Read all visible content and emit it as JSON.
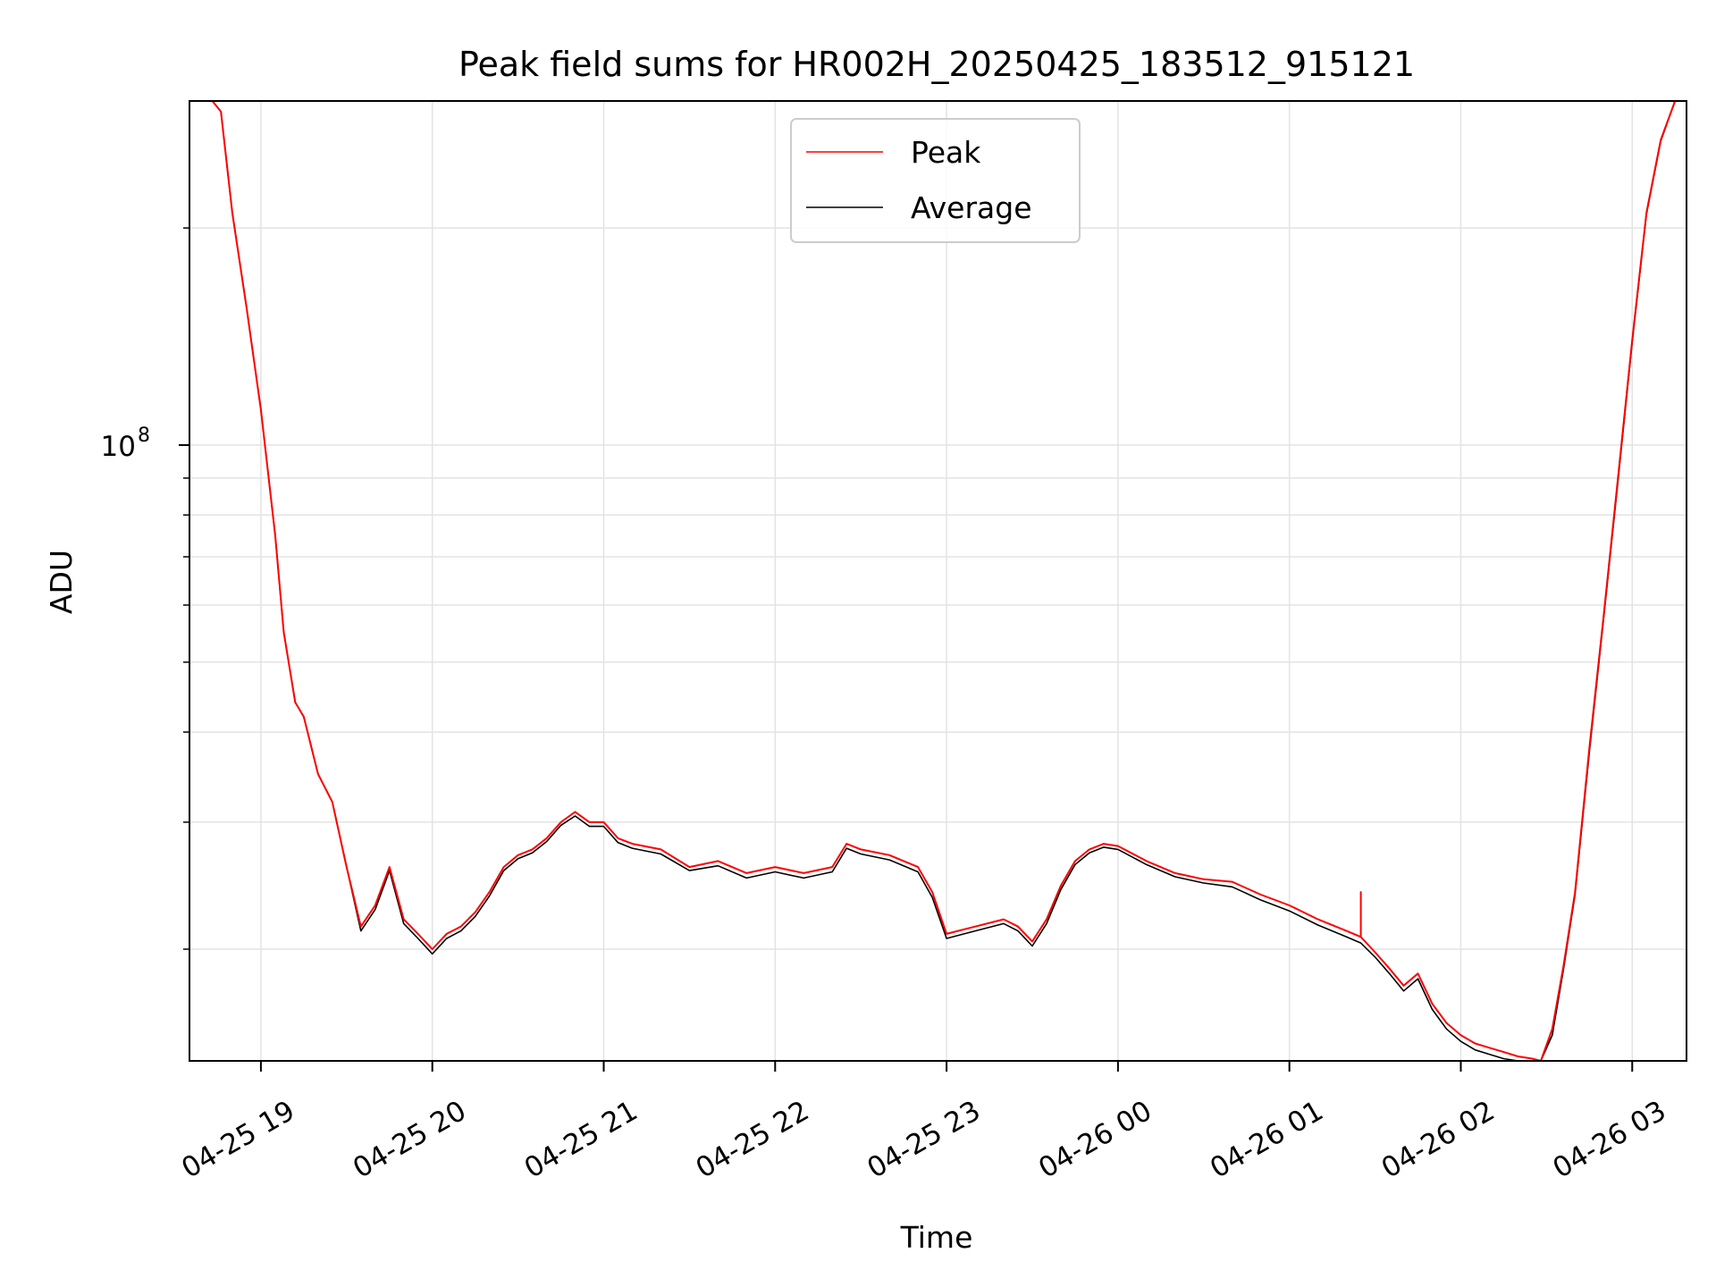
{
  "chart_data": {
    "type": "line",
    "title": "Peak field sums for HR002H_20250425_183512_915121",
    "xlabel": "Time",
    "ylabel": "ADU",
    "y_scale": "log",
    "xlim": [
      "2025-04-25T18:35",
      "2025-04-26T03:19"
    ],
    "ylim": [
      14000000,
      300000000
    ],
    "grid": true,
    "legend_position": "top-center",
    "x_ticks": [
      {
        "value": "2025-04-25T19:00",
        "label": "04-25 19"
      },
      {
        "value": "2025-04-25T20:00",
        "label": "04-25 20"
      },
      {
        "value": "2025-04-25T21:00",
        "label": "04-25 21"
      },
      {
        "value": "2025-04-25T22:00",
        "label": "04-25 22"
      },
      {
        "value": "2025-04-25T23:00",
        "label": "04-25 23"
      },
      {
        "value": "2025-04-26T00:00",
        "label": "04-26 00"
      },
      {
        "value": "2025-04-26T01:00",
        "label": "04-26 01"
      },
      {
        "value": "2025-04-26T02:00",
        "label": "04-26 02"
      },
      {
        "value": "2025-04-26T03:00",
        "label": "04-26 03"
      }
    ],
    "y_major_ticks": [
      {
        "value": 100000000,
        "label_base": "10",
        "label_exp": "8"
      }
    ],
    "y_minor_ticks": [
      20000000,
      30000000,
      40000000,
      50000000,
      60000000,
      70000000,
      80000000,
      90000000,
      200000000
    ],
    "series": [
      {
        "name": "Peak",
        "color": "#ff0000",
        "x": [
          "2025-04-25T18:35",
          "2025-04-25T18:40",
          "2025-04-25T18:43",
          "2025-04-25T18:46",
          "2025-04-25T18:50",
          "2025-04-25T18:55",
          "2025-04-25T19:00",
          "2025-04-25T19:05",
          "2025-04-25T19:08",
          "2025-04-25T19:12",
          "2025-04-25T19:15",
          "2025-04-25T19:20",
          "2025-04-25T19:25",
          "2025-04-25T19:30",
          "2025-04-25T19:35",
          "2025-04-25T19:40",
          "2025-04-25T19:45",
          "2025-04-25T19:50",
          "2025-04-25T19:55",
          "2025-04-25T20:00",
          "2025-04-25T20:05",
          "2025-04-25T20:10",
          "2025-04-25T20:15",
          "2025-04-25T20:20",
          "2025-04-25T20:25",
          "2025-04-25T20:30",
          "2025-04-25T20:35",
          "2025-04-25T20:40",
          "2025-04-25T20:45",
          "2025-04-25T20:50",
          "2025-04-25T20:55",
          "2025-04-25T21:00",
          "2025-04-25T21:05",
          "2025-04-25T21:10",
          "2025-04-25T21:20",
          "2025-04-25T21:30",
          "2025-04-25T21:40",
          "2025-04-25T21:50",
          "2025-04-25T22:00",
          "2025-04-25T22:10",
          "2025-04-25T22:20",
          "2025-04-25T22:25",
          "2025-04-25T22:30",
          "2025-04-25T22:40",
          "2025-04-25T22:50",
          "2025-04-25T22:55",
          "2025-04-25T23:00",
          "2025-04-25T23:10",
          "2025-04-25T23:20",
          "2025-04-25T23:25",
          "2025-04-25T23:30",
          "2025-04-25T23:35",
          "2025-04-25T23:40",
          "2025-04-25T23:45",
          "2025-04-25T23:50",
          "2025-04-25T23:55",
          "2025-04-26T00:00",
          "2025-04-26T00:10",
          "2025-04-26T00:20",
          "2025-04-26T00:30",
          "2025-04-26T00:40",
          "2025-04-26T00:50",
          "2025-04-26T01:00",
          "2025-04-26T01:10",
          "2025-04-26T01:20",
          "2025-04-26T01:25",
          "2025-04-26T01:25",
          "2025-04-26T01:25",
          "2025-04-26T01:30",
          "2025-04-26T01:35",
          "2025-04-26T01:40",
          "2025-04-26T01:45",
          "2025-04-26T01:50",
          "2025-04-26T01:55",
          "2025-04-26T02:00",
          "2025-04-26T02:05",
          "2025-04-26T02:10",
          "2025-04-26T02:15",
          "2025-04-26T02:20",
          "2025-04-26T02:25",
          "2025-04-26T02:28",
          "2025-04-26T02:32",
          "2025-04-26T02:36",
          "2025-04-26T02:40",
          "2025-04-26T02:45",
          "2025-04-26T02:50",
          "2025-04-26T02:55",
          "2025-04-26T03:00",
          "2025-04-26T03:05",
          "2025-04-26T03:10",
          "2025-04-26T03:15",
          "2025-04-26T03:19"
        ],
        "values": [
          300000000,
          300000000,
          300000000,
          290000000,
          210000000,
          155000000,
          112000000,
          75000000,
          55000000,
          44000000,
          42000000,
          35000000,
          32000000,
          26000000,
          21500000,
          23000000,
          26000000,
          22000000,
          21000000,
          20000000,
          21000000,
          21500000,
          22500000,
          24000000,
          26000000,
          27000000,
          27500000,
          28500000,
          30000000,
          31000000,
          30000000,
          30000000,
          28500000,
          28000000,
          27500000,
          26000000,
          26500000,
          25500000,
          26000000,
          25500000,
          26000000,
          28000000,
          27500000,
          27000000,
          26000000,
          24000000,
          21000000,
          21500000,
          22000000,
          21500000,
          20500000,
          22000000,
          24500000,
          26500000,
          27500000,
          28000000,
          27800000,
          26500000,
          25500000,
          25000000,
          24800000,
          23800000,
          23000000,
          22000000,
          21200000,
          20800000,
          24000000,
          20800000,
          19800000,
          18800000,
          17800000,
          18500000,
          16800000,
          15800000,
          15200000,
          14800000,
          14600000,
          14400000,
          14200000,
          14100000,
          13900000,
          15500000,
          19000000,
          24000000,
          38000000,
          58000000,
          90000000,
          140000000,
          210000000,
          265000000,
          300000000,
          300000000
        ]
      },
      {
        "name": "Average",
        "color": "#000000",
        "x": [
          "2025-04-25T18:35",
          "2025-04-25T18:40",
          "2025-04-25T18:43",
          "2025-04-25T18:46",
          "2025-04-25T18:50",
          "2025-04-25T18:55",
          "2025-04-25T19:00",
          "2025-04-25T19:05",
          "2025-04-25T19:08",
          "2025-04-25T19:12",
          "2025-04-25T19:15",
          "2025-04-25T19:20",
          "2025-04-25T19:25",
          "2025-04-25T19:30",
          "2025-04-25T19:35",
          "2025-04-25T19:40",
          "2025-04-25T19:45",
          "2025-04-25T19:50",
          "2025-04-25T19:55",
          "2025-04-25T20:00",
          "2025-04-25T20:05",
          "2025-04-25T20:10",
          "2025-04-25T20:15",
          "2025-04-25T20:20",
          "2025-04-25T20:25",
          "2025-04-25T20:30",
          "2025-04-25T20:35",
          "2025-04-25T20:40",
          "2025-04-25T20:45",
          "2025-04-25T20:50",
          "2025-04-25T20:55",
          "2025-04-25T21:00",
          "2025-04-25T21:05",
          "2025-04-25T21:10",
          "2025-04-25T21:20",
          "2025-04-25T21:30",
          "2025-04-25T21:40",
          "2025-04-25T21:50",
          "2025-04-25T22:00",
          "2025-04-25T22:10",
          "2025-04-25T22:20",
          "2025-04-25T22:25",
          "2025-04-25T22:30",
          "2025-04-25T22:40",
          "2025-04-25T22:50",
          "2025-04-25T22:55",
          "2025-04-25T23:00",
          "2025-04-25T23:10",
          "2025-04-25T23:20",
          "2025-04-25T23:25",
          "2025-04-25T23:30",
          "2025-04-25T23:35",
          "2025-04-25T23:40",
          "2025-04-25T23:45",
          "2025-04-25T23:50",
          "2025-04-25T23:55",
          "2025-04-26T00:00",
          "2025-04-26T00:10",
          "2025-04-26T00:20",
          "2025-04-26T00:30",
          "2025-04-26T00:40",
          "2025-04-26T00:50",
          "2025-04-26T01:00",
          "2025-04-26T01:10",
          "2025-04-26T01:20",
          "2025-04-26T01:25",
          "2025-04-26T01:30",
          "2025-04-26T01:35",
          "2025-04-26T01:40",
          "2025-04-26T01:45",
          "2025-04-26T01:50",
          "2025-04-26T01:55",
          "2025-04-26T02:00",
          "2025-04-26T02:05",
          "2025-04-26T02:10",
          "2025-04-26T02:15",
          "2025-04-26T02:20",
          "2025-04-26T02:25",
          "2025-04-26T02:28",
          "2025-04-26T02:32",
          "2025-04-26T02:36",
          "2025-04-26T02:40",
          "2025-04-26T02:45",
          "2025-04-26T02:50",
          "2025-04-26T02:55",
          "2025-04-26T03:00",
          "2025-04-26T03:05",
          "2025-04-26T03:10",
          "2025-04-26T03:15",
          "2025-04-26T03:19"
        ],
        "values": [
          300000000,
          300000000,
          300000000,
          290000000,
          210000000,
          155000000,
          112000000,
          75000000,
          55000000,
          44000000,
          42000000,
          35000000,
          32000000,
          26000000,
          21200000,
          22700000,
          25700000,
          21700000,
          20700000,
          19700000,
          20700000,
          21200000,
          22200000,
          23700000,
          25700000,
          26700000,
          27200000,
          28200000,
          29700000,
          30600000,
          29600000,
          29600000,
          28100000,
          27600000,
          27100000,
          25700000,
          26100000,
          25100000,
          25600000,
          25100000,
          25600000,
          27600000,
          27100000,
          26600000,
          25600000,
          23600000,
          20700000,
          21200000,
          21700000,
          21200000,
          20200000,
          21700000,
          24200000,
          26200000,
          27200000,
          27700000,
          27500000,
          26200000,
          25200000,
          24700000,
          24400000,
          23400000,
          22600000,
          21600000,
          20800000,
          20400000,
          19500000,
          18500000,
          17500000,
          18200000,
          16500000,
          15500000,
          14900000,
          14500000,
          14300000,
          14100000,
          13900000,
          13800000,
          13700000,
          15200000,
          18800000,
          23800000,
          37500000,
          57500000,
          89000000,
          139000000,
          209000000,
          264000000,
          300000000,
          300000000
        ]
      }
    ]
  }
}
